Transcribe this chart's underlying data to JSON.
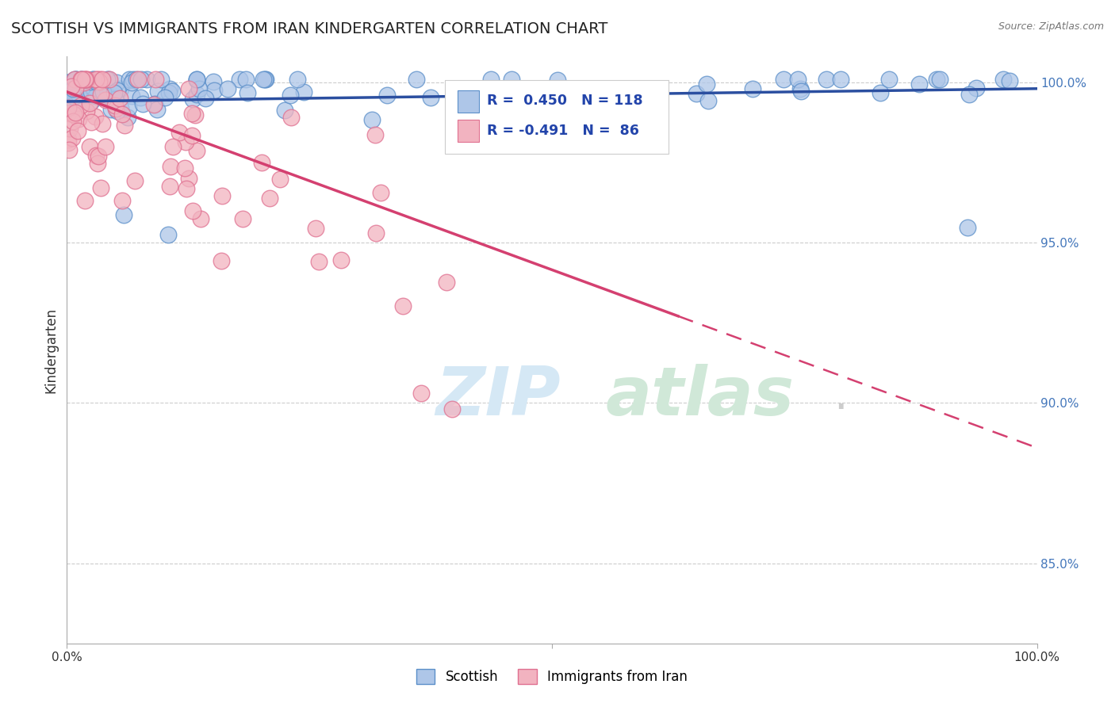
{
  "title": "SCOTTISH VS IMMIGRANTS FROM IRAN KINDERGARTEN CORRELATION CHART",
  "source": "Source: ZipAtlas.com",
  "ylabel": "Kindergarten",
  "xmin": 0.0,
  "xmax": 1.0,
  "ymin": 0.825,
  "ymax": 1.008,
  "right_yticks": [
    1.0,
    0.95,
    0.9,
    0.85
  ],
  "right_yticklabels": [
    "100.0%",
    "95.0%",
    "90.0%",
    "85.0%"
  ],
  "scottish_R": 0.45,
  "scottish_N": 118,
  "iran_R": -0.491,
  "iran_N": 86,
  "scottish_color": "#aec6e8",
  "scottish_edge": "#5b8fc9",
  "iran_color": "#f2b3c0",
  "iran_edge": "#e07090",
  "blue_line_color": "#2b4fa0",
  "pink_line_color": "#d44070",
  "legend_R_color": "#2244aa",
  "watermark_zip_color": "#d5e8f5",
  "watermark_atlas_color": "#d0e8d8"
}
